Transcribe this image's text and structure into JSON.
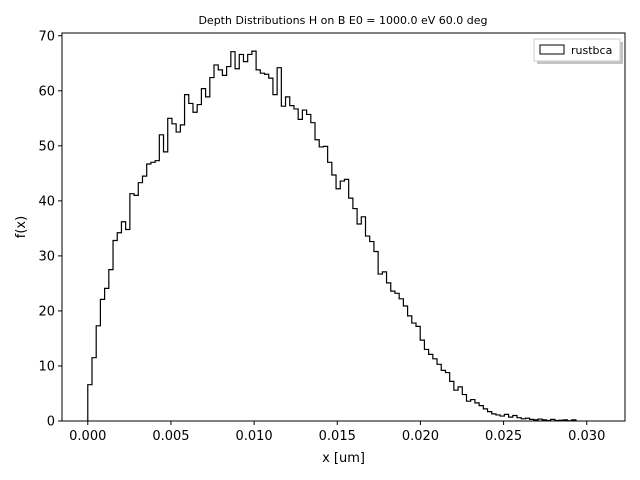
{
  "chart_data": {
    "type": "histogram",
    "title": "Depth Distributions H on B E0 = 1000.0 eV 60.0 deg",
    "xlabel": "x [um]",
    "ylabel": "f(x)",
    "xlim": [
      -0.00155,
      0.0323
    ],
    "ylim": [
      0,
      70.5
    ],
    "xticks": [
      0.0,
      0.005,
      0.01,
      0.015,
      0.02,
      0.025,
      0.03
    ],
    "xtick_labels": [
      "0.000",
      "0.005",
      "0.010",
      "0.015",
      "0.020",
      "0.025",
      "0.030"
    ],
    "yticks": [
      0,
      10,
      20,
      30,
      40,
      50,
      60,
      70
    ],
    "ytick_labels": [
      "0",
      "10",
      "20",
      "30",
      "40",
      "50",
      "60",
      "70"
    ],
    "grid": false,
    "legend_position": "top-right",
    "line_color": "#000000",
    "series": [
      {
        "name": "rustbca",
        "bin_start": 0.0,
        "bin_width": 0.000253,
        "values": [
          6.6,
          11.5,
          17.3,
          22.1,
          24.1,
          27.5,
          32.8,
          34.2,
          36.2,
          34.8,
          41.3,
          41.0,
          43.3,
          44.5,
          46.7,
          47.0,
          47.3,
          52.0,
          48.9,
          55.0,
          54.0,
          52.5,
          53.8,
          59.3,
          57.7,
          56.1,
          57.5,
          60.4,
          58.9,
          62.4,
          64.7,
          63.8,
          62.8,
          64.4,
          67.1,
          64.0,
          66.6,
          65.3,
          66.6,
          67.2,
          63.8,
          63.2,
          63.0,
          62.3,
          59.3,
          64.2,
          57.2,
          58.9,
          57.3,
          56.7,
          54.8,
          56.5,
          55.7,
          54.2,
          51.1,
          49.8,
          49.9,
          47.0,
          44.7,
          42.2,
          43.6,
          43.9,
          40.5,
          38.6,
          35.8,
          37.1,
          33.6,
          32.6,
          30.8,
          26.7,
          27.1,
          25.1,
          23.6,
          23.2,
          22.2,
          20.9,
          19.1,
          17.8,
          17.2,
          14.7,
          13.0,
          12.1,
          11.3,
          10.3,
          9.2,
          8.8,
          7.2,
          5.6,
          6.2,
          4.8,
          3.6,
          3.9,
          3.3,
          2.8,
          2.2,
          1.7,
          1.3,
          1.1,
          0.9,
          1.2,
          0.7,
          1.0,
          0.6,
          0.4,
          0.5,
          0.3,
          0.2,
          0.35,
          0.2,
          0.1,
          0.3,
          0.1,
          0.15,
          0.2,
          0.05,
          0.2
        ]
      }
    ]
  }
}
